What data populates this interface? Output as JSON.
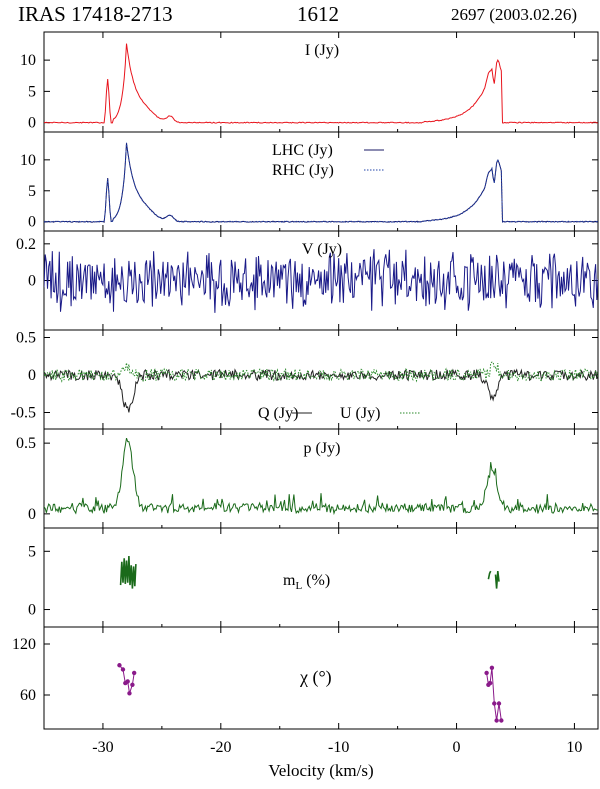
{
  "header": {
    "source": "IRAS 17418-2713",
    "line": "1612",
    "observation": "2697 (2003.02.26)"
  },
  "colors": {
    "I": "#e8141c",
    "LHC": "#1a1a66",
    "RHC": "#2244aa",
    "V": "#1a1a88",
    "Q": "#222222",
    "U": "#2a8a2a",
    "p": "#1a6a1a",
    "mL": "#1a6a1a",
    "chi": "#8a1a8a"
  },
  "chart_data": [
    {
      "type": "line",
      "title": "I (Jy)",
      "xlim": [
        -35,
        12
      ],
      "ylim": [
        -1.5,
        14.5
      ],
      "yticks": [
        0,
        5,
        10
      ],
      "ytick_labels": [
        "0",
        "5",
        "10"
      ],
      "series": [
        {
          "name": "I (Jy)",
          "style": "solid",
          "kind": "I"
        }
      ]
    },
    {
      "type": "line",
      "title": "LHC (Jy) / RHC (Jy)",
      "xlim": [
        -35,
        12
      ],
      "ylim": [
        -1.5,
        14.5
      ],
      "yticks": [
        0,
        5,
        10
      ],
      "ytick_labels": [
        "0",
        "5",
        "10"
      ],
      "legend": [
        {
          "label": "LHC (Jy)",
          "style": "solid"
        },
        {
          "label": "RHC (Jy)",
          "style": "dotted"
        }
      ],
      "series": [
        {
          "name": "LHC (Jy)",
          "style": "solid",
          "kind": "I"
        },
        {
          "name": "RHC (Jy)",
          "style": "dotted",
          "kind": "I"
        }
      ]
    },
    {
      "type": "line",
      "title": "V (Jy)",
      "xlim": [
        -35,
        12
      ],
      "ylim": [
        -0.27,
        0.27
      ],
      "yticks": [
        0,
        0.2
      ],
      "ytick_labels": [
        "0",
        "0.2"
      ],
      "series": [
        {
          "name": "V (Jy)",
          "style": "solid",
          "kind": "V"
        }
      ]
    },
    {
      "type": "line",
      "title": "Q (Jy) / U (Jy)",
      "xlim": [
        -35,
        12
      ],
      "ylim": [
        -0.72,
        0.6
      ],
      "yticks": [
        -0.5,
        0,
        0.5
      ],
      "ytick_labels": [
        "-0.5",
        "0",
        "0.5"
      ],
      "legend": [
        {
          "label": "Q (Jy)",
          "style": "solid"
        },
        {
          "label": "U (Jy)",
          "style": "dotted"
        }
      ],
      "series": [
        {
          "name": "Q (Jy)",
          "style": "solid",
          "kind": "Q"
        },
        {
          "name": "U (Jy)",
          "style": "dotted",
          "kind": "U"
        }
      ]
    },
    {
      "type": "line",
      "title": "p (Jy)",
      "xlim": [
        -35,
        12
      ],
      "ylim": [
        -0.1,
        0.6
      ],
      "yticks": [
        0,
        0.5
      ],
      "ytick_labels": [
        "0",
        "0.5"
      ],
      "series": [
        {
          "name": "p (Jy)",
          "style": "solid",
          "kind": "P"
        }
      ]
    },
    {
      "type": "line",
      "title": "mL (%)",
      "title_main": "m",
      "title_sub": "L",
      "title_rest": " (%)",
      "xlim": [
        -35,
        12
      ],
      "ylim": [
        -1.5,
        7
      ],
      "yticks": [
        0,
        5
      ],
      "ytick_labels": [
        "0",
        "5"
      ],
      "segments": [
        {
          "x": [
            -28.5,
            -28.4,
            -28.3,
            -28.2,
            -28.1,
            -28.0,
            -27.9,
            -27.8,
            -27.7,
            -27.6,
            -27.5,
            -27.4,
            -27.3,
            -27.2
          ],
          "y": [
            2.1,
            4.1,
            2.3,
            4.4,
            2.2,
            4.2,
            2.3,
            4.6,
            2.1,
            3.8,
            1.8,
            3.7,
            2.0,
            3.9
          ]
        },
        {
          "x": [
            2.7,
            2.8,
            2.9
          ],
          "y": [
            2.6,
            3.1,
            3.3
          ]
        },
        {
          "x": [
            3.3,
            3.4,
            3.5,
            3.6
          ],
          "y": [
            3.0,
            1.8,
            3.3,
            2.4
          ]
        }
      ]
    },
    {
      "type": "scatter",
      "title": "χ (°)",
      "xlim": [
        -35,
        12
      ],
      "ylim": [
        20,
        140
      ],
      "yticks": [
        60,
        120
      ],
      "ytick_labels": [
        "60",
        "120"
      ],
      "segments": [
        {
          "x": [
            -28.6,
            -28.3,
            -28.1,
            -27.9,
            -27.75,
            -27.5,
            -27.35
          ],
          "y": [
            95,
            90,
            74,
            76,
            62,
            72,
            86
          ]
        },
        {
          "x": [
            2.55,
            2.7,
            2.85,
            3.0,
            3.2,
            3.4,
            3.6,
            3.8
          ],
          "y": [
            86,
            72,
            74,
            92,
            50,
            30,
            50,
            30
          ]
        }
      ]
    }
  ],
  "xaxis": {
    "label": "Velocity (km/s)",
    "ticks": [
      -30,
      -20,
      -10,
      0,
      10
    ],
    "tick_labels": [
      "-30",
      "-20",
      "-10",
      "0",
      "10"
    ]
  }
}
